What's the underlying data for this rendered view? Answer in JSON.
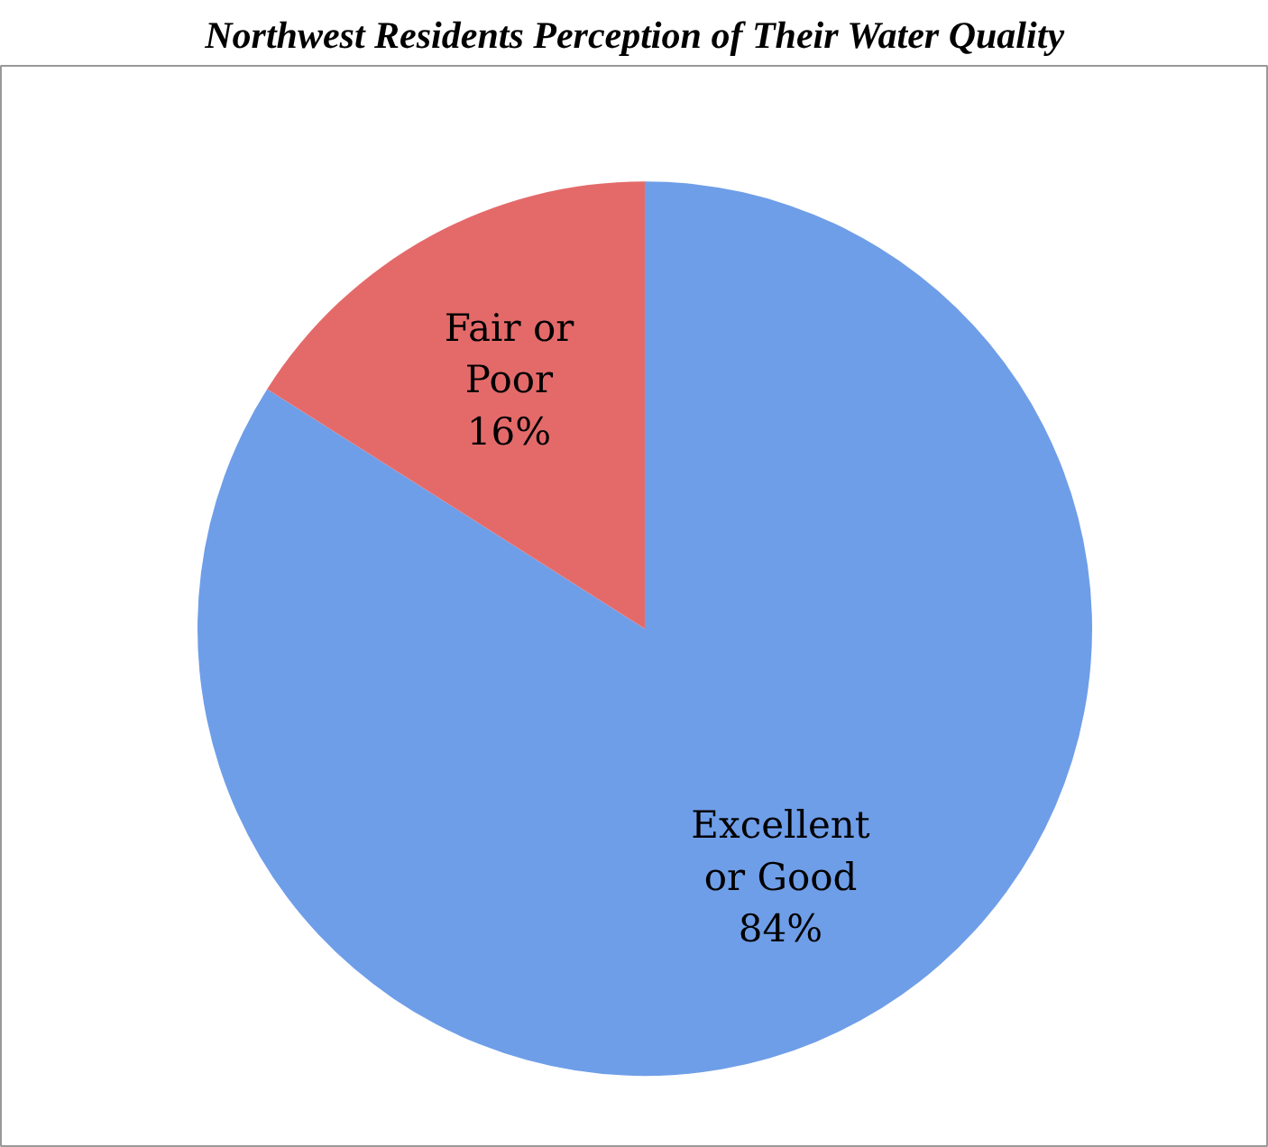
{
  "chart_data": {
    "type": "pie",
    "title": "Northwest Residents Perception of Their Water Quality",
    "categories": [
      "Excellent or Good",
      "Fair or Poor"
    ],
    "values": [
      84,
      16
    ],
    "colors": [
      "#6f9ee8",
      "#e46a6a"
    ],
    "value_labels": [
      "84%",
      "16%"
    ]
  }
}
